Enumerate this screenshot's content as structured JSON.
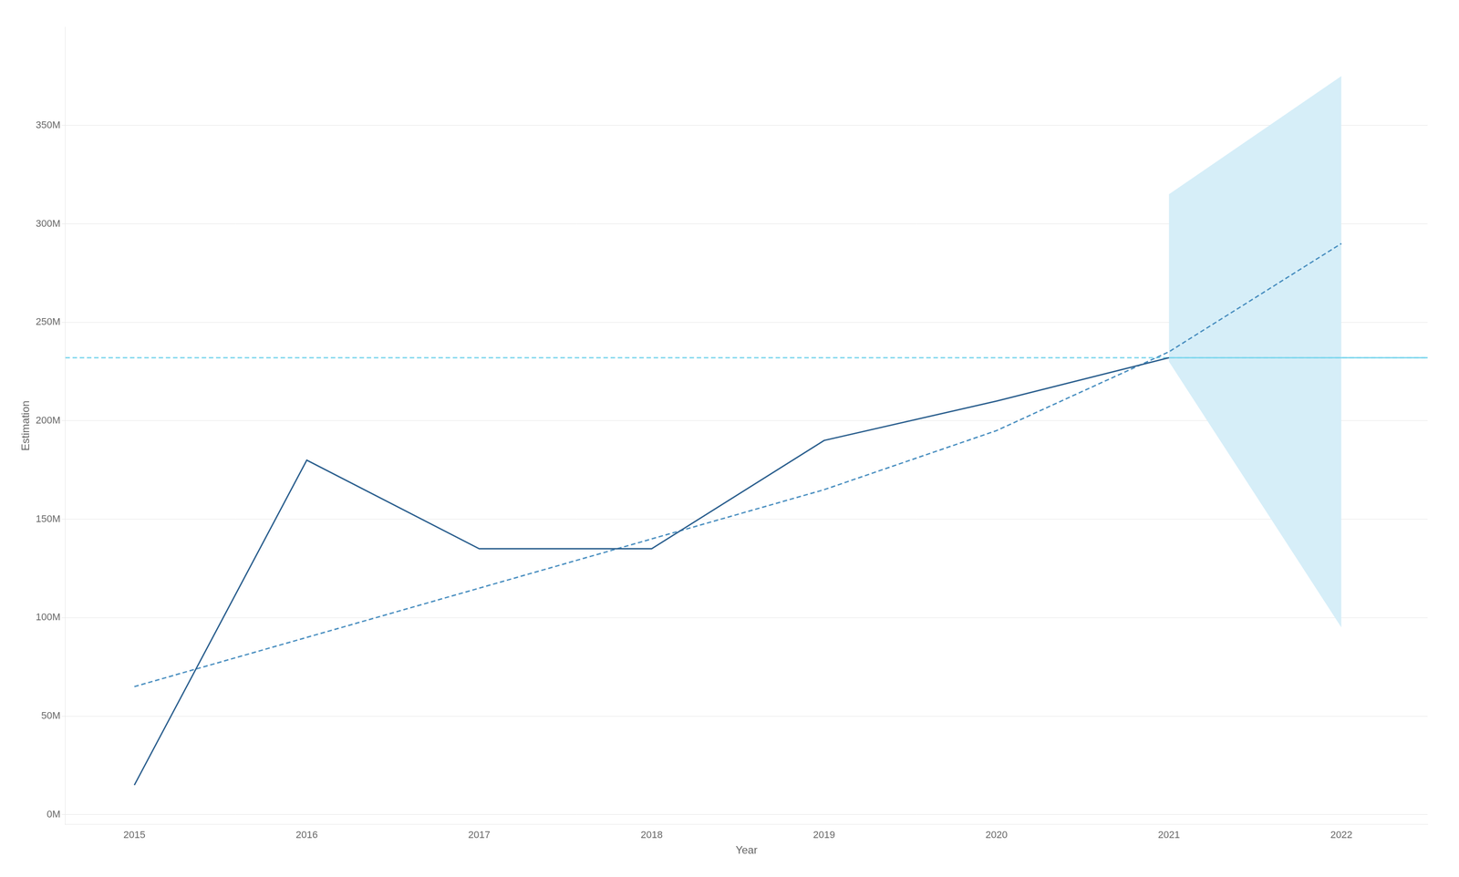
{
  "chart_data": {
    "type": "line",
    "xlabel": "Year",
    "ylabel": "Estimation",
    "xlim": [
      2014.6,
      2022.5
    ],
    "xticks": [
      2015,
      2016,
      2017,
      2018,
      2019,
      2020,
      2021,
      2022
    ],
    "ylim": [
      -5,
      400
    ],
    "yticks": [
      {
        "value": 0,
        "label": "0M"
      },
      {
        "value": 50,
        "label": "50M"
      },
      {
        "value": 100,
        "label": "100M"
      },
      {
        "value": 150,
        "label": "150M"
      },
      {
        "value": 200,
        "label": "200M"
      },
      {
        "value": 250,
        "label": "250M"
      },
      {
        "value": 300,
        "label": "300M"
      },
      {
        "value": 350,
        "label": "350M"
      }
    ],
    "grid": "y",
    "series": [
      {
        "type": "area",
        "color": "#D6EEF8",
        "x": [
          2021,
          2022
        ],
        "upper": [
          315,
          375
        ],
        "lower": [
          230,
          95
        ]
      },
      {
        "type": "line",
        "color": "#7DD6ED",
        "line_style": "dashed",
        "x": [
          2014.6,
          2022.5
        ],
        "values": [
          232,
          232
        ]
      },
      {
        "type": "line",
        "color": "#7DD6ED",
        "line_style": "solid",
        "x": [
          2021,
          2022.5
        ],
        "values": [
          232,
          232
        ]
      },
      {
        "type": "line",
        "color": "#4A8FC0",
        "line_style": "dashed",
        "x": [
          2015,
          2016,
          2017,
          2018,
          2019,
          2020,
          2021,
          2022
        ],
        "values": [
          65,
          90,
          115,
          140,
          165,
          195,
          235,
          290
        ]
      },
      {
        "type": "line",
        "color": "#2B5F8E",
        "line_style": "solid",
        "x": [
          2015,
          2016,
          2017,
          2018,
          2019,
          2020,
          2021
        ],
        "values": [
          15,
          180,
          135,
          135,
          190,
          210,
          232
        ]
      }
    ]
  }
}
